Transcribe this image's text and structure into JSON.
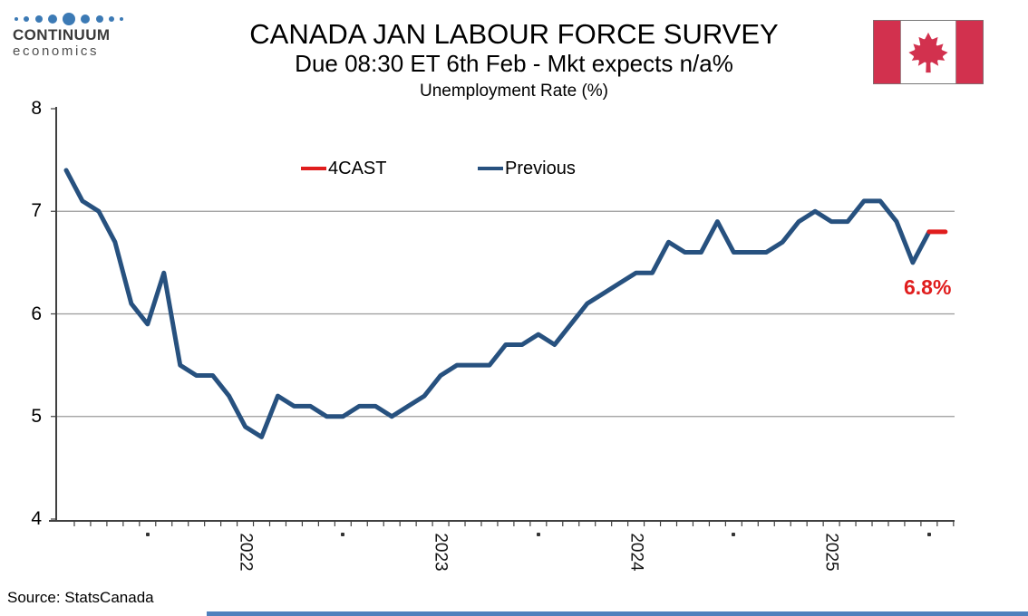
{
  "logo": {
    "brand": "CONTINUUM",
    "subbrand": "economics",
    "dot_color": "#3c7ab5",
    "dot_sizes": [
      4,
      6,
      8,
      10,
      14,
      10,
      8,
      6,
      4
    ]
  },
  "header": {
    "title": "CANADA JAN LABOUR FORCE SURVEY",
    "subtitle": "Due 08:30 ET 6th Feb - Mkt expects n/a%"
  },
  "flag": {
    "red": "#d2314e",
    "white": "#ffffff",
    "border": "#777777"
  },
  "legend": {
    "items": [
      {
        "label": "4CAST",
        "color": "#e01d1d"
      },
      {
        "label": "Previous",
        "color": "#27517f"
      }
    ]
  },
  "chart_data": {
    "type": "line",
    "title": "Unemployment Rate (%)",
    "xlabel": "",
    "ylabel": "",
    "ylim": [
      4,
      8
    ],
    "yticks": [
      4,
      5,
      6,
      7,
      8
    ],
    "gridlines": [
      5,
      6,
      7
    ],
    "grid": true,
    "legend_position": "top-center",
    "axis_color": "#404040",
    "grid_color": "#9a9a9a",
    "months": [
      "2021-07",
      "2021-08",
      "2021-09",
      "2021-10",
      "2021-11",
      "2021-12",
      "2022-01",
      "2022-02",
      "2022-03",
      "2022-04",
      "2022-05",
      "2022-06",
      "2022-07",
      "2022-08",
      "2022-09",
      "2022-10",
      "2022-11",
      "2022-12",
      "2023-01",
      "2023-02",
      "2023-03",
      "2023-04",
      "2023-05",
      "2023-06",
      "2023-07",
      "2023-08",
      "2023-09",
      "2023-10",
      "2023-11",
      "2023-12",
      "2024-01",
      "2024-02",
      "2024-03",
      "2024-04",
      "2024-05",
      "2024-06",
      "2024-07",
      "2024-08",
      "2024-09",
      "2024-10",
      "2024-11",
      "2024-12",
      "2025-01",
      "2025-02",
      "2025-03",
      "2025-04",
      "2025-05",
      "2025-06",
      "2025-07",
      "2025-08",
      "2025-09",
      "2025-10",
      "2025-11",
      "2025-12"
    ],
    "series": [
      {
        "name": "Previous",
        "color": "#27517f",
        "values": [
          7.4,
          7.1,
          7.0,
          6.7,
          6.1,
          5.9,
          6.4,
          5.5,
          5.4,
          5.4,
          5.2,
          4.9,
          4.8,
          5.2,
          5.1,
          5.1,
          5.0,
          5.0,
          5.1,
          5.1,
          5.0,
          5.1,
          5.2,
          5.4,
          5.5,
          5.5,
          5.5,
          5.7,
          5.7,
          5.8,
          5.7,
          5.9,
          6.1,
          6.2,
          6.3,
          6.4,
          6.4,
          6.7,
          6.6,
          6.6,
          6.9,
          6.6,
          6.6,
          6.6,
          6.7,
          6.9,
          7.0,
          6.9,
          6.9,
          7.1,
          7.1,
          6.9,
          6.5,
          6.8
        ]
      },
      {
        "name": "4CAST",
        "color": "#e01d1d",
        "forecast_month": "2026-01",
        "forecast_value": 6.8
      }
    ],
    "x_year_labels": [
      {
        "label": "2022",
        "month_index": 11
      },
      {
        "label": "2023",
        "month_index": 23
      },
      {
        "label": "2024",
        "month_index": 35
      },
      {
        "label": "2025",
        "month_index": 47
      }
    ],
    "x_dot_label_indices": [
      5,
      17,
      29,
      41,
      53
    ],
    "annotation": {
      "text": "6.8%",
      "color": "#e01d1d"
    }
  },
  "footer": {
    "source": "Source: StatsCanada",
    "bar_color": "#4f81bd"
  }
}
